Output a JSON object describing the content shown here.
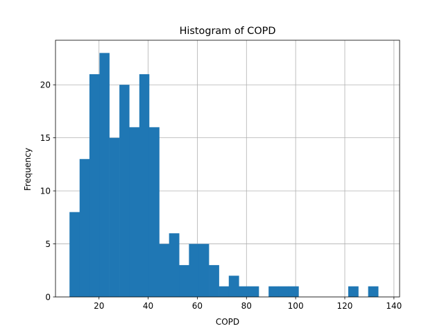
{
  "chart_data": {
    "type": "bar",
    "title": "Histogram of COPD",
    "xlabel": "COPD",
    "ylabel": "Frequency",
    "xlim": [
      2.3,
      142.3
    ],
    "ylim": [
      0,
      24.2
    ],
    "xticks": [
      20,
      40,
      60,
      80,
      100,
      120,
      140
    ],
    "yticks": [
      0,
      5,
      10,
      15,
      20
    ],
    "grid": true,
    "legend": "none",
    "bar_color": "#1f77b4",
    "bins": [
      {
        "x0": 8.0,
        "x1": 12.1,
        "count": 8
      },
      {
        "x0": 12.1,
        "x1": 16.1,
        "count": 13
      },
      {
        "x0": 16.1,
        "x1": 20.2,
        "count": 21
      },
      {
        "x0": 20.2,
        "x1": 24.2,
        "count": 23
      },
      {
        "x0": 24.2,
        "x1": 28.3,
        "count": 15
      },
      {
        "x0": 28.3,
        "x1": 32.3,
        "count": 20
      },
      {
        "x0": 32.3,
        "x1": 36.4,
        "count": 16
      },
      {
        "x0": 36.4,
        "x1": 40.4,
        "count": 21
      },
      {
        "x0": 40.4,
        "x1": 44.5,
        "count": 16
      },
      {
        "x0": 44.5,
        "x1": 48.5,
        "count": 5
      },
      {
        "x0": 48.5,
        "x1": 52.6,
        "count": 6
      },
      {
        "x0": 52.6,
        "x1": 56.6,
        "count": 3
      },
      {
        "x0": 56.6,
        "x1": 60.7,
        "count": 5
      },
      {
        "x0": 60.7,
        "x1": 64.7,
        "count": 5
      },
      {
        "x0": 64.7,
        "x1": 68.8,
        "count": 3
      },
      {
        "x0": 68.8,
        "x1": 72.8,
        "count": 1
      },
      {
        "x0": 72.8,
        "x1": 76.9,
        "count": 2
      },
      {
        "x0": 76.9,
        "x1": 80.9,
        "count": 1
      },
      {
        "x0": 80.9,
        "x1": 85.0,
        "count": 1
      },
      {
        "x0": 85.0,
        "x1": 89.0,
        "count": 0
      },
      {
        "x0": 89.0,
        "x1": 93.1,
        "count": 1
      },
      {
        "x0": 93.1,
        "x1": 97.1,
        "count": 1
      },
      {
        "x0": 97.1,
        "x1": 101.2,
        "count": 1
      },
      {
        "x0": 101.2,
        "x1": 105.2,
        "count": 0
      },
      {
        "x0": 105.2,
        "x1": 109.3,
        "count": 0
      },
      {
        "x0": 109.3,
        "x1": 113.3,
        "count": 0
      },
      {
        "x0": 113.3,
        "x1": 117.4,
        "count": 0
      },
      {
        "x0": 117.4,
        "x1": 121.4,
        "count": 0
      },
      {
        "x0": 121.4,
        "x1": 125.5,
        "count": 1
      },
      {
        "x0": 125.5,
        "x1": 129.5,
        "count": 0
      },
      {
        "x0": 129.5,
        "x1": 133.6,
        "count": 1
      }
    ]
  }
}
